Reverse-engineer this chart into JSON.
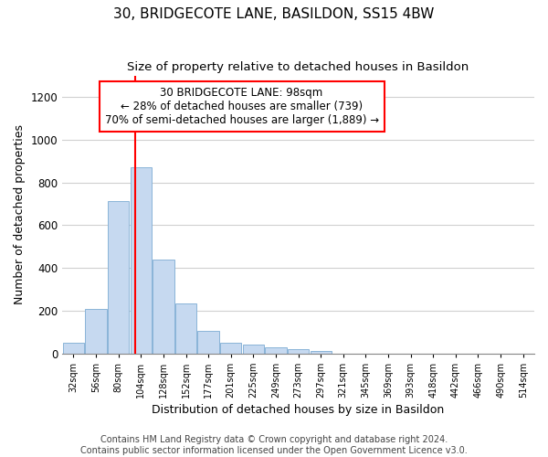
{
  "title": "30, BRIDGECOTE LANE, BASILDON, SS15 4BW",
  "subtitle": "Size of property relative to detached houses in Basildon",
  "xlabel": "Distribution of detached houses by size in Basildon",
  "ylabel": "Number of detached properties",
  "bin_labels": [
    "32sqm",
    "56sqm",
    "80sqm",
    "104sqm",
    "128sqm",
    "152sqm",
    "177sqm",
    "201sqm",
    "225sqm",
    "249sqm",
    "273sqm",
    "297sqm",
    "321sqm",
    "345sqm",
    "369sqm",
    "393sqm",
    "418sqm",
    "442sqm",
    "466sqm",
    "490sqm",
    "514sqm"
  ],
  "bar_values": [
    50,
    210,
    715,
    870,
    440,
    235,
    105,
    50,
    42,
    28,
    20,
    10,
    0,
    0,
    0,
    0,
    0,
    0,
    0,
    0,
    0
  ],
  "bar_color": "#c6d9f0",
  "bar_edgecolor": "#8ab4d8",
  "red_line_x": 2.75,
  "annotation_text": "30 BRIDGECOTE LANE: 98sqm\n← 28% of detached houses are smaller (739)\n70% of semi-detached houses are larger (1,889) →",
  "annotation_box_color": "white",
  "annotation_box_edgecolor": "red",
  "red_line_color": "red",
  "ylim": [
    0,
    1300
  ],
  "yticks": [
    0,
    200,
    400,
    600,
    800,
    1000,
    1200
  ],
  "grid_color": "#d0d0d0",
  "background_color": "white",
  "footnote": "Contains HM Land Registry data © Crown copyright and database right 2024.\nContains public sector information licensed under the Open Government Licence v3.0.",
  "title_fontsize": 11,
  "subtitle_fontsize": 9.5,
  "xlabel_fontsize": 9,
  "ylabel_fontsize": 9,
  "annotation_fontsize": 8.5,
  "footnote_fontsize": 7
}
